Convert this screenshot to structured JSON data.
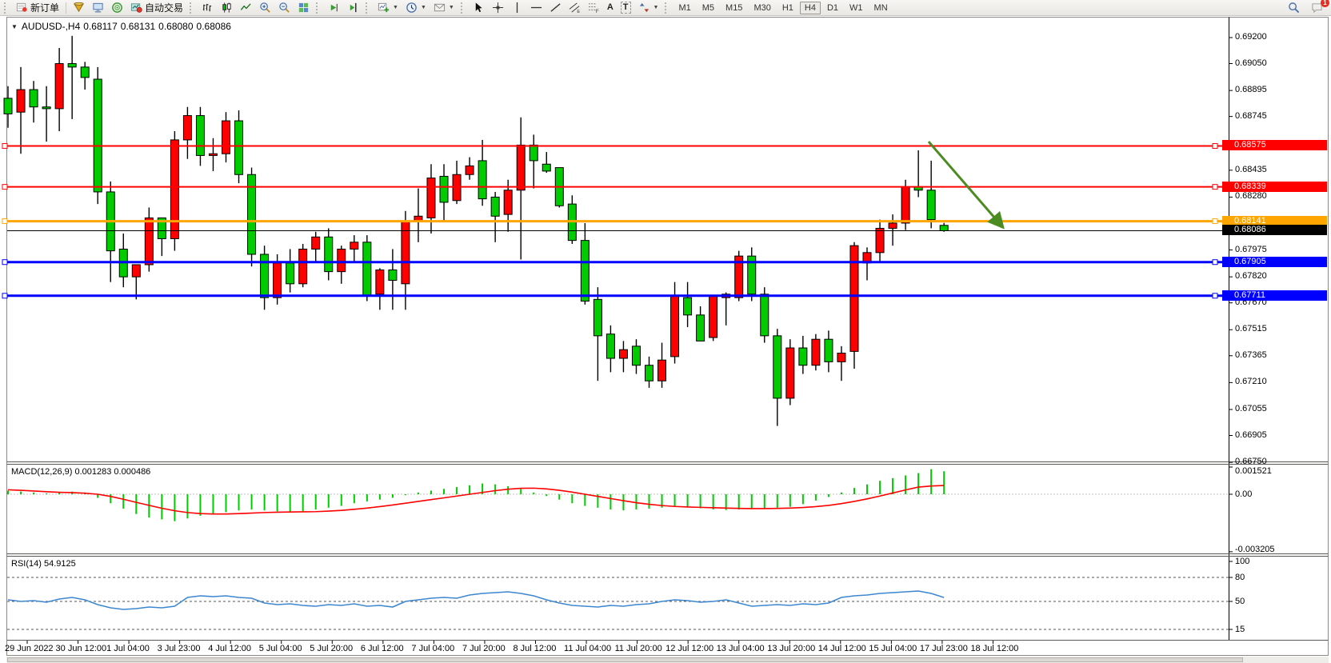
{
  "toolbar": {
    "new_order_label": "新订单",
    "autotrading_label": "自动交易",
    "timeframes": [
      "M1",
      "M5",
      "M15",
      "M30",
      "H1",
      "H4",
      "D1",
      "W1",
      "MN"
    ],
    "active_timeframe": "H4",
    "notification_count": "1"
  },
  "header": {
    "symbol": "AUDUSD-,H4",
    "open": "0.68117",
    "high": "0.68131",
    "low": "0.68080",
    "close": "0.68086"
  },
  "chart_data": [
    {
      "type": "candlestick",
      "symbol": "AUDUSD-",
      "timeframe": "H4",
      "up_color": "#ff0000",
      "down_color": "#00cc00",
      "ohlc": [
        [
          0.6885,
          0.6892,
          0.6868,
          0.6876
        ],
        [
          0.6877,
          0.6903,
          0.6853,
          0.689
        ],
        [
          0.689,
          0.6895,
          0.6871,
          0.688
        ],
        [
          0.688,
          0.6892,
          0.686,
          0.6879
        ],
        [
          0.6879,
          0.6914,
          0.6866,
          0.6905
        ],
        [
          0.6905,
          0.6921,
          0.6873,
          0.6903
        ],
        [
          0.6903,
          0.6906,
          0.689,
          0.6897
        ],
        [
          0.6896,
          0.6903,
          0.6824,
          0.6831
        ],
        [
          0.6831,
          0.6837,
          0.6779,
          0.6797
        ],
        [
          0.6798,
          0.6807,
          0.6776,
          0.6782
        ],
        [
          0.6782,
          0.6789,
          0.6769,
          0.6789
        ],
        [
          0.6789,
          0.6822,
          0.6785,
          0.6816
        ],
        [
          0.6816,
          0.6816,
          0.6794,
          0.6804
        ],
        [
          0.6804,
          0.6866,
          0.6797,
          0.6861
        ],
        [
          0.6861,
          0.688,
          0.685,
          0.6875
        ],
        [
          0.6875,
          0.688,
          0.6846,
          0.6852
        ],
        [
          0.6852,
          0.6862,
          0.6843,
          0.6853
        ],
        [
          0.6853,
          0.6877,
          0.6848,
          0.6872
        ],
        [
          0.6872,
          0.6878,
          0.6836,
          0.6841
        ],
        [
          0.6841,
          0.6845,
          0.6788,
          0.6795
        ],
        [
          0.6795,
          0.68,
          0.6763,
          0.677
        ],
        [
          0.677,
          0.6795,
          0.6766,
          0.679
        ],
        [
          0.679,
          0.6798,
          0.6773,
          0.6778
        ],
        [
          0.6778,
          0.6801,
          0.6776,
          0.6798
        ],
        [
          0.6798,
          0.6808,
          0.679,
          0.6805
        ],
        [
          0.6805,
          0.681,
          0.678,
          0.6785
        ],
        [
          0.6785,
          0.68,
          0.6778,
          0.6798
        ],
        [
          0.6798,
          0.6806,
          0.679,
          0.6802
        ],
        [
          0.6802,
          0.6806,
          0.6768,
          0.6771
        ],
        [
          0.6772,
          0.6787,
          0.6763,
          0.6786
        ],
        [
          0.6786,
          0.6798,
          0.6763,
          0.678
        ],
        [
          0.6778,
          0.682,
          0.6763,
          0.6814
        ],
        [
          0.6814,
          0.6833,
          0.6802,
          0.6817
        ],
        [
          0.6816,
          0.6847,
          0.6807,
          0.6839
        ],
        [
          0.684,
          0.6847,
          0.6814,
          0.6825
        ],
        [
          0.6826,
          0.6849,
          0.6824,
          0.6841
        ],
        [
          0.6841,
          0.6851,
          0.6838,
          0.6846
        ],
        [
          0.6849,
          0.6861,
          0.6823,
          0.6827
        ],
        [
          0.6828,
          0.6831,
          0.6802,
          0.6817
        ],
        [
          0.6818,
          0.6838,
          0.6808,
          0.6832
        ],
        [
          0.6832,
          0.6874,
          0.6792,
          0.6858
        ],
        [
          0.6858,
          0.6864,
          0.6833,
          0.6849
        ],
        [
          0.6847,
          0.6854,
          0.6842,
          0.6843
        ],
        [
          0.6845,
          0.6845,
          0.6822,
          0.6823
        ],
        [
          0.6824,
          0.6829,
          0.6801,
          0.6803
        ],
        [
          0.6803,
          0.6813,
          0.6766,
          0.6768
        ],
        [
          0.6769,
          0.6776,
          0.6722,
          0.6748
        ],
        [
          0.6749,
          0.6754,
          0.6727,
          0.6735
        ],
        [
          0.6735,
          0.6745,
          0.6727,
          0.674
        ],
        [
          0.6742,
          0.6746,
          0.6726,
          0.6731
        ],
        [
          0.6731,
          0.6736,
          0.6718,
          0.6722
        ],
        [
          0.6722,
          0.6744,
          0.6718,
          0.6734
        ],
        [
          0.6736,
          0.6779,
          0.6732,
          0.6771
        ],
        [
          0.677,
          0.6779,
          0.6753,
          0.676
        ],
        [
          0.676,
          0.6765,
          0.6745,
          0.6745
        ],
        [
          0.6747,
          0.6771,
          0.6745,
          0.6771
        ],
        [
          0.677,
          0.6773,
          0.6754,
          0.6772
        ],
        [
          0.677,
          0.6797,
          0.6768,
          0.6794
        ],
        [
          0.6794,
          0.6799,
          0.6768,
          0.6772
        ],
        [
          0.6772,
          0.6776,
          0.6744,
          0.6748
        ],
        [
          0.6748,
          0.6752,
          0.6696,
          0.6712
        ],
        [
          0.6712,
          0.6746,
          0.6708,
          0.6741
        ],
        [
          0.6741,
          0.6748,
          0.6726,
          0.6731
        ],
        [
          0.6731,
          0.6749,
          0.6728,
          0.6746
        ],
        [
          0.6746,
          0.6751,
          0.6727,
          0.6733
        ],
        [
          0.6733,
          0.6742,
          0.6722,
          0.6738
        ],
        [
          0.6739,
          0.6802,
          0.6729,
          0.68
        ],
        [
          0.679,
          0.6799,
          0.678,
          0.6796
        ],
        [
          0.6796,
          0.6815,
          0.679,
          0.681
        ],
        [
          0.681,
          0.6818,
          0.68,
          0.6813
        ],
        [
          0.6813,
          0.6838,
          0.6809,
          0.6834
        ],
        [
          0.6834,
          0.6855,
          0.6828,
          0.6832
        ],
        [
          0.6832,
          0.6849,
          0.681,
          0.6815
        ],
        [
          0.68117,
          0.68131,
          0.6808,
          0.68086
        ]
      ],
      "y_ticks": [
        {
          "label": "0.69200",
          "price": 0.692
        },
        {
          "label": "0.69050",
          "price": 0.6905
        },
        {
          "label": "0.68895",
          "price": 0.68895
        },
        {
          "label": "0.68745",
          "price": 0.68745
        },
        {
          "label": "0.68435",
          "price": 0.68435
        },
        {
          "label": "0.68280",
          "price": 0.6828
        },
        {
          "label": "0.67975",
          "price": 0.67975
        },
        {
          "label": "0.67820",
          "price": 0.6782
        },
        {
          "label": "0.67670",
          "price": 0.6767
        },
        {
          "label": "0.67515",
          "price": 0.67515
        },
        {
          "label": "0.67365",
          "price": 0.67365
        },
        {
          "label": "0.67210",
          "price": 0.6721
        },
        {
          "label": "0.67055",
          "price": 0.67055
        },
        {
          "label": "0.66905",
          "price": 0.66905
        },
        {
          "label": "0.66750",
          "price": 0.6675
        }
      ],
      "ylim": [
        0.6675,
        0.6932
      ],
      "hlines": [
        {
          "label": "0.68575",
          "price": 0.68575,
          "color": "#ff0000",
          "width": 2
        },
        {
          "label": "0.68339",
          "price": 0.68339,
          "color": "#ff0000",
          "width": 2
        },
        {
          "label": "0.68141",
          "price": 0.68141,
          "color": "#ffa500",
          "width": 3
        },
        {
          "label": "0.67905",
          "price": 0.67905,
          "color": "#0000ff",
          "width": 3
        },
        {
          "label": "0.67711",
          "price": 0.67711,
          "color": "#0000ff",
          "width": 3
        }
      ],
      "current_price": {
        "label": "0.68086",
        "price": 0.68086,
        "color": "#000000"
      },
      "arrow": {
        "from_bar": 71.8,
        "from_price": 0.686,
        "to_bar": 77.6,
        "to_price": 0.68105,
        "color": "#4b8b22"
      },
      "x_labels": [
        "29 Jun 2022",
        "30 Jun 12:00",
        "1 Jul 04:00",
        "3 Jul 23:00",
        "4 Jul 12:00",
        "5 Jul 04:00",
        "5 Jul 20:00",
        "6 Jul 12:00",
        "7 Jul 04:00",
        "7 Jul 20:00",
        "8 Jul 12:00",
        "11 Jul 04:00",
        "11 Jul 20:00",
        "12 Jul 12:00",
        "13 Jul 04:00",
        "13 Jul 20:00",
        "14 Jul 12:00",
        "15 Jul 04:00",
        "17 Jul 23:00",
        "18 Jul 12:00"
      ]
    },
    {
      "type": "bar",
      "label": "MACD(12,26,9)",
      "values_text": "0.001283 0.000486",
      "main_value": 0.001283,
      "signal_value": 0.000486,
      "hist_color": "#00cc00",
      "signal_color": "#ff0000",
      "y_ticks": [
        {
          "label": "0.001521",
          "value": 0.001521
        },
        {
          "label": "0.00",
          "value": 0
        },
        {
          "label": "-0.003205",
          "value": -0.003205
        }
      ],
      "ylim": [
        -0.003205,
        0.001521
      ],
      "histogram": [
        0.0002,
        0.00015,
        0.0001,
        5e-05,
        0.0001,
        0.00015,
        0.0001,
        -0.0002,
        -0.0005,
        -0.0008,
        -0.0011,
        -0.0013,
        -0.0014,
        -0.0015,
        -0.00135,
        -0.0012,
        -0.0011,
        -0.001,
        -0.0009,
        -0.00085,
        -0.0009,
        -0.00095,
        -0.001,
        -0.00095,
        -0.00085,
        -0.00075,
        -0.00065,
        -0.0005,
        -0.0004,
        -0.0003,
        -0.0002,
        -5e-05,
        0.0001,
        0.0002,
        0.0003,
        0.0004,
        0.0005,
        0.0006,
        0.00055,
        0.00045,
        0.0003,
        0.0001,
        -0.0001,
        -0.0003,
        -0.0005,
        -0.00065,
        -0.00075,
        -0.00085,
        -0.0009,
        -0.00085,
        -0.0008,
        -0.00075,
        -0.0007,
        -0.00072,
        -0.00078,
        -0.00085,
        -0.00088,
        -0.00085,
        -0.0008,
        -0.00078,
        -0.00075,
        -0.0007,
        -0.00055,
        -0.00035,
        -0.00015,
        0.0001,
        0.00035,
        0.00055,
        0.00075,
        0.0009,
        0.00105,
        0.00118,
        0.0014,
        0.001283
      ],
      "signal": [
        0.00025,
        0.00022,
        0.00018,
        0.00014,
        0.00011,
        9e-05,
        6e-05,
        0,
        -0.00012,
        -0.00028,
        -0.00045,
        -0.00062,
        -0.00078,
        -0.00092,
        -0.00102,
        -0.00108,
        -0.0011,
        -0.0011,
        -0.00108,
        -0.00105,
        -0.00102,
        -0.001,
        -0.00099,
        -0.00098,
        -0.00097,
        -0.00094,
        -0.0009,
        -0.00084,
        -0.00077,
        -0.00069,
        -0.0006,
        -0.0005,
        -0.0004,
        -0.0003,
        -0.0002,
        -0.0001,
        0,
        0.0001,
        0.0002,
        0.00028,
        0.00033,
        0.00034,
        0.0003,
        0.00022,
        0.00012,
        0,
        -0.00012,
        -0.00024,
        -0.00036,
        -0.00047,
        -0.00056,
        -0.00063,
        -0.00068,
        -0.00071,
        -0.00073,
        -0.00075,
        -0.00077,
        -0.00079,
        -0.0008,
        -0.0008,
        -0.00079,
        -0.00077,
        -0.00074,
        -0.00069,
        -0.00062,
        -0.00052,
        -0.0004,
        -0.00026,
        -0.0001,
        7e-05,
        0.00024,
        0.0004,
        0.00046,
        0.000486
      ]
    },
    {
      "type": "line",
      "label": "RSI(14)",
      "value_text": "54.9125",
      "current_value": 54.9125,
      "line_color": "#3d87d0",
      "levels": [
        80,
        50,
        15
      ],
      "y_ticks": [
        {
          "label": "100",
          "value": 100
        },
        {
          "label": "80",
          "value": 80
        },
        {
          "label": "50",
          "value": 50
        },
        {
          "label": "15",
          "value": 15
        }
      ],
      "ylim": [
        0,
        100
      ],
      "values": [
        52,
        50,
        51,
        49,
        53,
        55,
        52,
        46,
        42,
        40,
        41,
        43,
        42,
        44,
        55,
        57,
        56,
        57,
        55,
        54,
        48,
        46,
        47,
        45,
        44,
        46,
        45,
        47,
        44,
        45,
        43,
        50,
        52,
        54,
        55,
        54,
        58,
        60,
        61,
        62,
        60,
        57,
        52,
        48,
        45,
        44,
        43,
        45,
        44,
        46,
        47,
        50,
        52,
        51,
        49,
        50,
        52,
        48,
        44,
        45,
        46,
        45,
        47,
        46,
        48,
        55,
        57,
        58,
        60,
        61,
        62,
        63,
        60,
        54.9
      ]
    }
  ]
}
